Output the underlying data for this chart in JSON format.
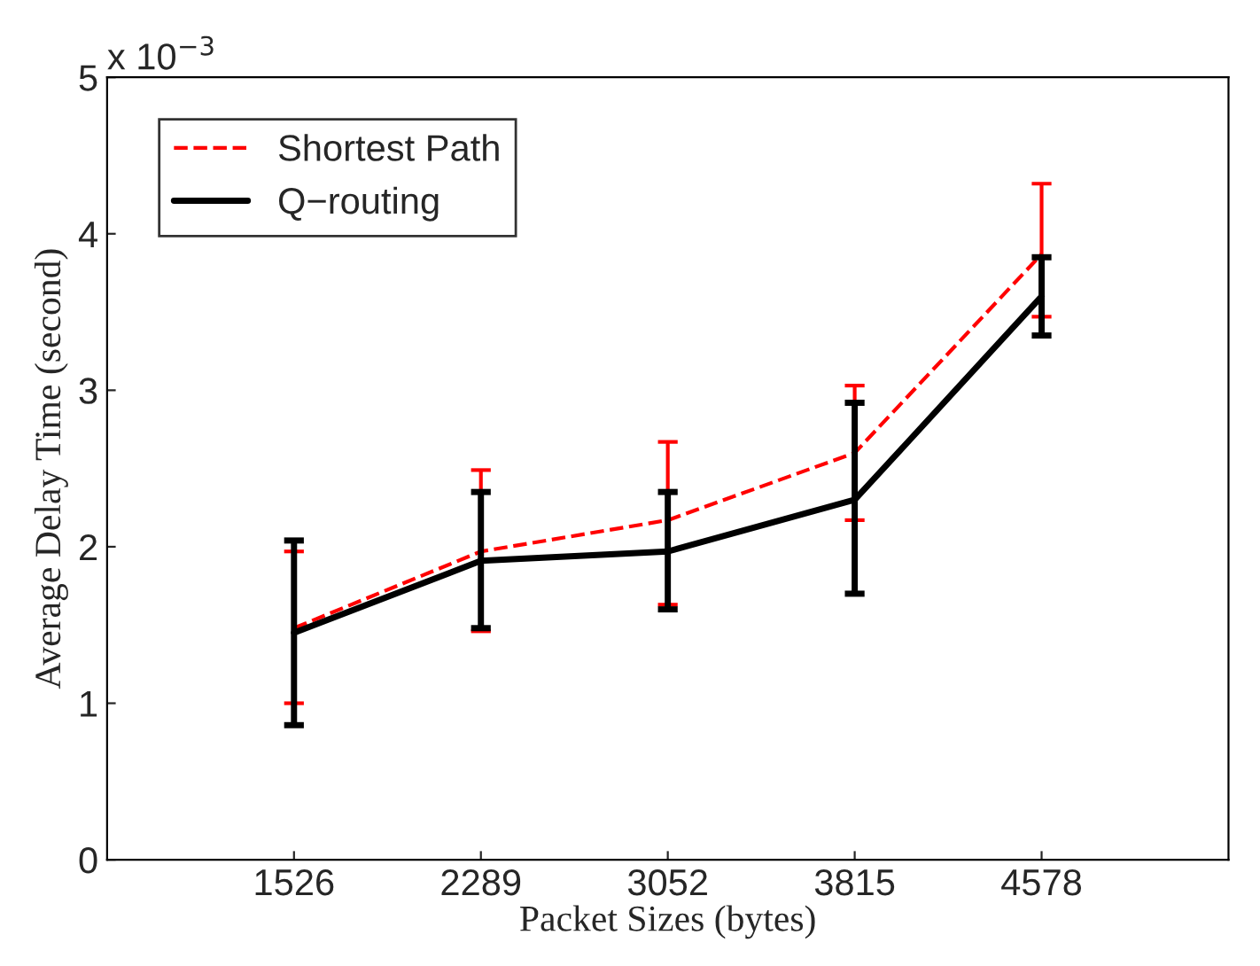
{
  "chart_data": {
    "type": "line",
    "xlabel": "Packet Sizes (bytes)",
    "ylabel": "Average Delay Time (second)",
    "x": [
      1526,
      2289,
      3052,
      3815,
      4578
    ],
    "xlim": [
      763,
      5341
    ],
    "xticks": [
      1526,
      2289,
      3052,
      3815,
      4578
    ],
    "ylim": [
      0,
      5
    ],
    "yticks": [
      0,
      1,
      2,
      3,
      4,
      5
    ],
    "annotations": [
      "x 10$^{−3}$"
    ],
    "series": [
      {
        "name": "Shortest Path",
        "color": "#ff0000",
        "line_style": "dashed",
        "values": [
          1.48,
          1.97,
          2.17,
          2.6,
          3.87
        ],
        "errors": [
          [
            1.0,
            1.97
          ],
          [
            1.46,
            2.49
          ],
          [
            1.63,
            2.67
          ],
          [
            2.17,
            3.03
          ],
          [
            3.47,
            4.32
          ]
        ]
      },
      {
        "name": "Q−routing",
        "color": "#000000",
        "line_style": "solid",
        "values": [
          1.45,
          1.91,
          1.97,
          2.3,
          3.6
        ],
        "errors": [
          [
            0.86,
            2.04
          ],
          [
            1.48,
            2.35
          ],
          [
            1.6,
            2.35
          ],
          [
            1.7,
            2.92
          ],
          [
            3.35,
            3.85
          ]
        ]
      }
    ],
    "legend": "top left",
    "grid": false,
    "marker": "none"
  }
}
